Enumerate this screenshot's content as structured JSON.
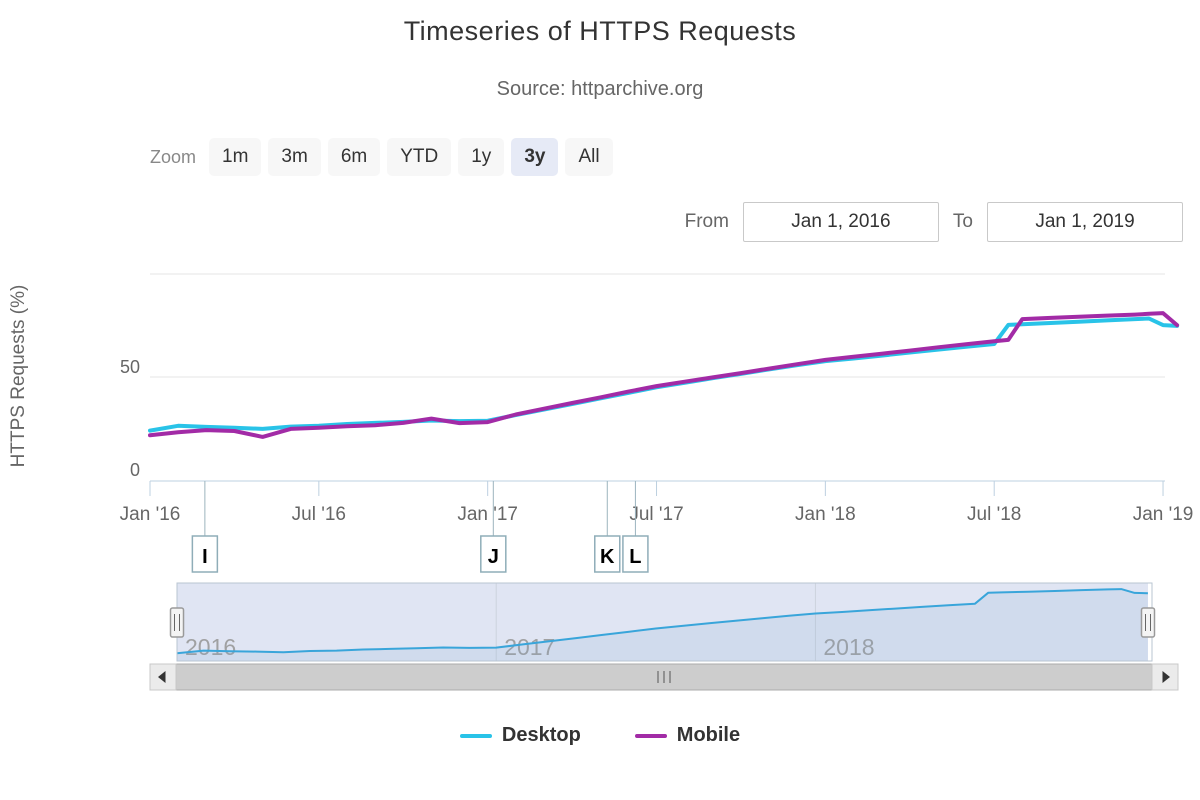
{
  "header": {
    "title": "Timeseries of HTTPS Requests",
    "subtitle": "Source: httparchive.org"
  },
  "toolbar": {
    "zoom_label": "Zoom",
    "range_buttons": [
      {
        "label": "1m",
        "selected": false
      },
      {
        "label": "3m",
        "selected": false
      },
      {
        "label": "6m",
        "selected": false
      },
      {
        "label": "YTD",
        "selected": false
      },
      {
        "label": "1y",
        "selected": false
      },
      {
        "label": "3y",
        "selected": true
      },
      {
        "label": "All",
        "selected": false
      }
    ],
    "from_label": "From",
    "from_value": "Jan 1, 2016",
    "to_label": "To",
    "to_value": "Jan 1, 2019"
  },
  "legend": {
    "items": [
      {
        "label": "Desktop",
        "color": "#29c3e8"
      },
      {
        "label": "Mobile",
        "color": "#a22ba6"
      }
    ]
  },
  "chart_data": {
    "type": "line",
    "title": "Timeseries of HTTPS Requests",
    "subtitle": "Source: httparchive.org",
    "ylabel": "HTTPS Requests (%)",
    "ylim": [
      0,
      100
    ],
    "x_unit": "months_since_Jan_2016",
    "x_range_shown": [
      0,
      36.5
    ],
    "grid": "horizontal",
    "legend_position": "bottom",
    "yticks": [
      {
        "value": 0,
        "label": "0"
      },
      {
        "value": 50,
        "label": "50"
      },
      {
        "value": 100,
        "label": ""
      }
    ],
    "xticks": [
      {
        "x": 0,
        "label": "Jan '16"
      },
      {
        "x": 6,
        "label": "Jul '16"
      },
      {
        "x": 12,
        "label": "Jan '17"
      },
      {
        "x": 18,
        "label": "Jul '17"
      },
      {
        "x": 24,
        "label": "Jan '18"
      },
      {
        "x": 30,
        "label": "Jul '18"
      },
      {
        "x": 36,
        "label": "Jan '19"
      }
    ],
    "series": [
      {
        "name": "Desktop",
        "color": "#29c3e8",
        "points": [
          [
            0,
            24
          ],
          [
            1,
            26.3
          ],
          [
            2,
            25.8
          ],
          [
            3,
            25.4
          ],
          [
            4,
            24.8
          ],
          [
            5,
            25.9
          ],
          [
            6,
            26.3
          ],
          [
            7,
            27.2
          ],
          [
            8,
            27.7
          ],
          [
            9,
            28.2
          ],
          [
            10,
            28.9
          ],
          [
            11,
            28.6
          ],
          [
            12,
            28.8
          ],
          [
            13,
            31.5
          ],
          [
            14,
            34.2
          ],
          [
            15,
            36.9
          ],
          [
            16,
            39.6
          ],
          [
            17,
            42.3
          ],
          [
            18,
            45
          ],
          [
            19,
            47.2
          ],
          [
            20,
            49.4
          ],
          [
            21,
            51.5
          ],
          [
            22,
            53.7
          ],
          [
            23,
            55.8
          ],
          [
            24,
            57.7
          ],
          [
            25,
            59
          ],
          [
            26,
            60.4
          ],
          [
            27,
            61.9
          ],
          [
            28,
            63.3
          ],
          [
            29,
            64.7
          ],
          [
            30,
            66
          ],
          [
            30.5,
            75.3
          ],
          [
            31,
            75.6
          ],
          [
            32,
            76.2
          ],
          [
            33,
            76.8
          ],
          [
            34,
            77.5
          ],
          [
            35,
            78.1
          ],
          [
            35.5,
            78.4
          ],
          [
            36,
            75.2
          ],
          [
            36.5,
            74.8
          ]
        ]
      },
      {
        "name": "Mobile",
        "color": "#a22ba6",
        "points": [
          [
            0,
            21.7
          ],
          [
            1,
            23.2
          ],
          [
            2,
            24.2
          ],
          [
            3,
            23.8
          ],
          [
            4,
            20.9
          ],
          [
            5,
            24.8
          ],
          [
            6,
            25.4
          ],
          [
            7,
            26.1
          ],
          [
            8,
            26.6
          ],
          [
            9,
            27.7
          ],
          [
            10,
            29.8
          ],
          [
            11,
            27.6
          ],
          [
            12,
            28.1
          ],
          [
            13,
            31.8
          ],
          [
            14,
            34.6
          ],
          [
            15,
            37.4
          ],
          [
            16,
            40.1
          ],
          [
            17,
            42.9
          ],
          [
            18,
            45.6
          ],
          [
            19,
            47.7
          ],
          [
            20,
            49.8
          ],
          [
            21,
            51.9
          ],
          [
            22,
            54.1
          ],
          [
            23,
            56.2
          ],
          [
            24,
            58.3
          ],
          [
            25,
            59.8
          ],
          [
            26,
            61.3
          ],
          [
            27,
            62.8
          ],
          [
            28,
            64.4
          ],
          [
            29,
            65.9
          ],
          [
            30,
            67.4
          ],
          [
            30.5,
            68
          ],
          [
            31,
            78.1
          ],
          [
            32,
            78.7
          ],
          [
            33,
            79.2
          ],
          [
            34,
            79.8
          ],
          [
            35,
            80.3
          ],
          [
            35.5,
            80.7
          ],
          [
            36,
            81
          ],
          [
            36.5,
            75.2
          ]
        ]
      }
    ],
    "flags": [
      {
        "x": 1.95,
        "label": "I"
      },
      {
        "x": 12.2,
        "label": "J"
      },
      {
        "x": 16.25,
        "label": "K"
      },
      {
        "x": 17.25,
        "label": "L"
      }
    ],
    "navigator": {
      "series_shown": "Desktop",
      "year_labels": [
        {
          "x": 0,
          "label": "2016"
        },
        {
          "x": 12,
          "label": "2017"
        },
        {
          "x": 24,
          "label": "2018"
        }
      ]
    }
  },
  "colors": {
    "desktop": "#29c3e8",
    "mobile": "#a22ba6",
    "axis_line": "#bdd0e0",
    "gridline": "#e6e6e6",
    "flag_border": "#8fadb8",
    "selected_button_bg": "#e6eaf6",
    "navigator_mask": "#667fc2",
    "navigator_line": "#39a5da"
  }
}
